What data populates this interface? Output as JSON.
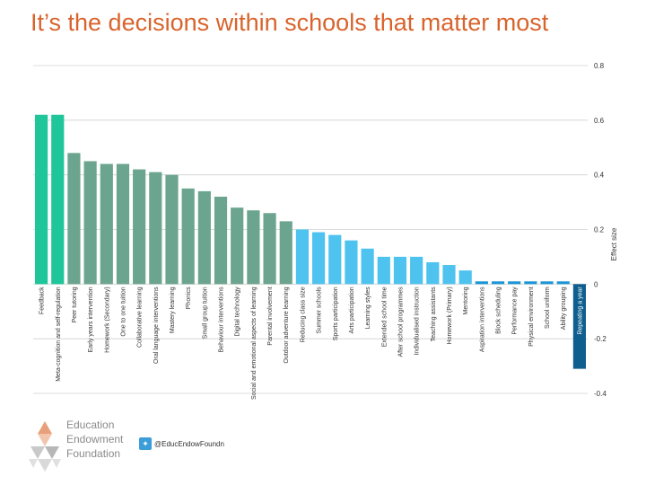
{
  "title": "It’s the decisions within schools that matter most",
  "footer": {
    "org_line1": "Education",
    "org_line2": "Endowment",
    "org_line3": "Foundation",
    "twitter_handle": "@EducEndowFoundn",
    "twitter_icon": "twitter-icon"
  },
  "colors": {
    "teal": "#1ec69a",
    "sage": "#6ba58f",
    "light_blue": "#4ec3ef",
    "mid_blue": "#1a96d4",
    "dark_blue": "#0f5f8e",
    "grid": "#d0d0d0",
    "axis_text": "#333333"
  },
  "chart_data": {
    "type": "bar",
    "title": "It’s the decisions within schools that matter most",
    "ylabel": "Effect size",
    "ylim": [
      -0.4,
      0.8
    ],
    "yticks": [
      -0.4,
      -0.2,
      0,
      0.2,
      0.4,
      0.6,
      0.8
    ],
    "ytick_labels": [
      "-0.4",
      "-0.2",
      "0",
      "0.2",
      "0.4",
      "0.6",
      "0.8"
    ],
    "categories": [
      "Feedback",
      "Meta-cognition and self-regulation",
      "Peer tutoring",
      "Early years intervention",
      "Homework (Secondary)",
      "One to one tuition",
      "Collaborative learning",
      "Oral language interventions",
      "Mastery learning",
      "Phonics",
      "Small group tuition",
      "Behaviour interventions",
      "Digital technology",
      "Social and emotional aspects of learning",
      "Parental involvement",
      "Outdoor adventure learning",
      "Reducing class size",
      "Summer schools",
      "Sports participation",
      "Arts participation",
      "Learning styles",
      "Extended school time",
      "After school programmes",
      "Individualised instruction",
      "Teaching assistants",
      "Homework (Primary)",
      "Mentoring",
      "Aspiration interventions",
      "Block scheduling",
      "Performance pay",
      "Physical environment",
      "School uniform",
      "Ability grouping",
      "Repeating a year"
    ],
    "values": [
      0.62,
      0.62,
      0.48,
      0.45,
      0.44,
      0.44,
      0.42,
      0.41,
      0.4,
      0.35,
      0.34,
      0.32,
      0.28,
      0.27,
      0.26,
      0.23,
      0.2,
      0.19,
      0.18,
      0.16,
      0.13,
      0.1,
      0.1,
      0.1,
      0.08,
      0.07,
      0.05,
      0.01,
      0.01,
      0.01,
      0.01,
      0.01,
      0.01,
      -0.31
    ],
    "bar_color_groups": [
      "teal",
      "teal",
      "sage",
      "sage",
      "sage",
      "sage",
      "sage",
      "sage",
      "sage",
      "sage",
      "sage",
      "sage",
      "sage",
      "sage",
      "sage",
      "sage",
      "light_blue",
      "light_blue",
      "light_blue",
      "light_blue",
      "light_blue",
      "light_blue",
      "light_blue",
      "light_blue",
      "light_blue",
      "light_blue",
      "light_blue",
      "mid_blue",
      "mid_blue",
      "mid_blue",
      "mid_blue",
      "mid_blue",
      "mid_blue",
      "dark_blue"
    ],
    "grid": true
  }
}
